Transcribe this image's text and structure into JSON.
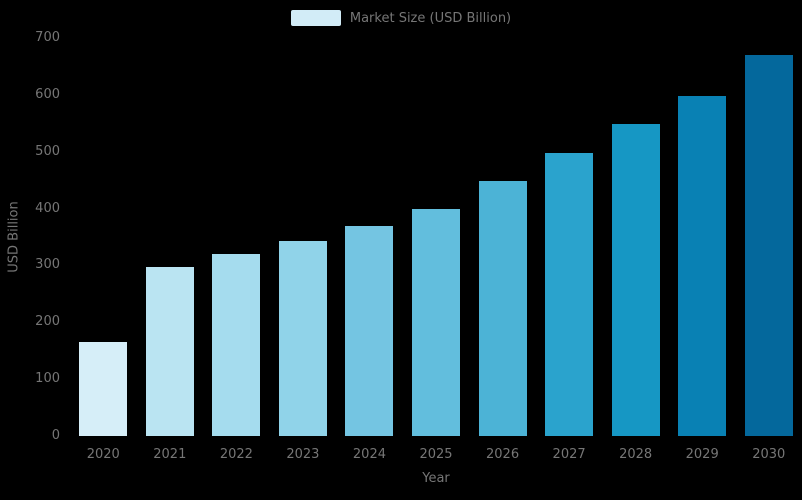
{
  "chart_data": {
    "type": "bar",
    "title": "",
    "categories": [
      "2020",
      "2021",
      "2022",
      "2023",
      "2024",
      "2025",
      "2026",
      "2027",
      "2028",
      "2029",
      "2030"
    ],
    "series": [
      {
        "name": "Market Size (USD Billion)",
        "values": [
          165,
          297,
          320,
          343,
          369,
          399,
          448,
          498,
          549,
          598,
          670
        ]
      }
    ],
    "xlabel": "Year",
    "ylabel": "USD Billion",
    "ylim": [
      0,
      700
    ],
    "ytick_interval": 100,
    "y_ticks": [
      "0",
      "100",
      "200",
      "300",
      "400",
      "500",
      "600",
      "700"
    ],
    "grid": false,
    "legend_position": "top",
    "background_color": "#000000",
    "text_color": "#767676",
    "bar_colors": [
      "#d6eef8",
      "#bae4f2",
      "#a5dcee",
      "#90d3e9",
      "#74c5e2",
      "#62bedd",
      "#4cb3d6",
      "#2aa3cd",
      "#1697c4",
      "#0981b4",
      "#04689c"
    ]
  },
  "legend": {
    "swatch_color": "#d2ecf7",
    "label": "Market Size (USD Billion)"
  }
}
